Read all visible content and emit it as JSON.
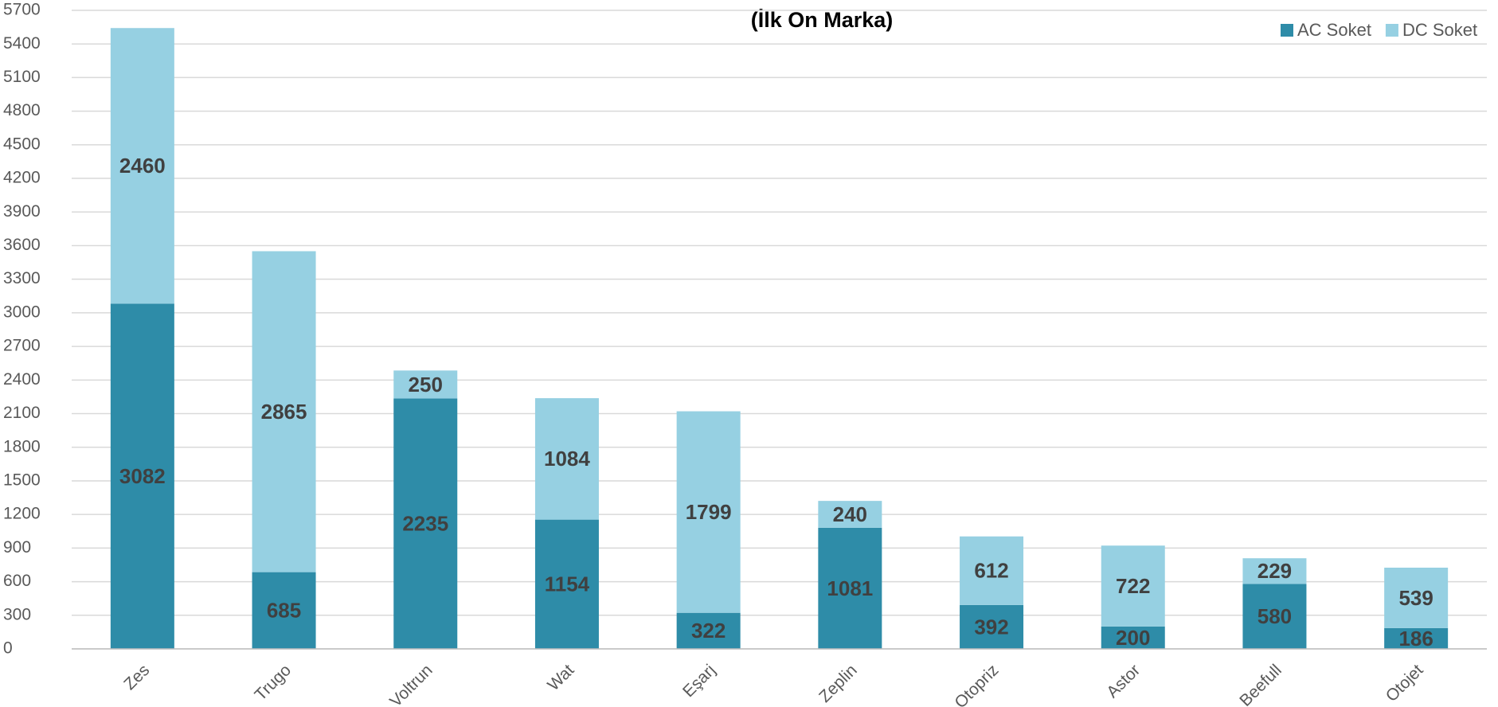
{
  "chart_data": {
    "type": "stacked_bar",
    "title": "(İlk On Marka)",
    "categories": [
      "Zes",
      "Trugo",
      "Voltrun",
      "Wat",
      "Eşarj",
      "Zeplin",
      "Otopriz",
      "Astor",
      "Beefull",
      "Otojet"
    ],
    "series": [
      {
        "name": "AC Soket",
        "color": "#2e8ca8",
        "values": [
          3082,
          685,
          2235,
          1154,
          322,
          1081,
          392,
          200,
          580,
          186
        ]
      },
      {
        "name": "DC Soket",
        "color": "#96d0e2",
        "values": [
          2460,
          2865,
          250,
          1084,
          1799,
          240,
          612,
          722,
          229,
          539
        ]
      }
    ],
    "ylim": [
      0,
      5700
    ],
    "yticks": [
      0,
      300,
      600,
      900,
      1200,
      1500,
      1800,
      2100,
      2400,
      2700,
      3000,
      3300,
      3600,
      3900,
      4200,
      4500,
      4800,
      5100,
      5400,
      5700
    ],
    "grid": true,
    "legend": "top-right"
  }
}
